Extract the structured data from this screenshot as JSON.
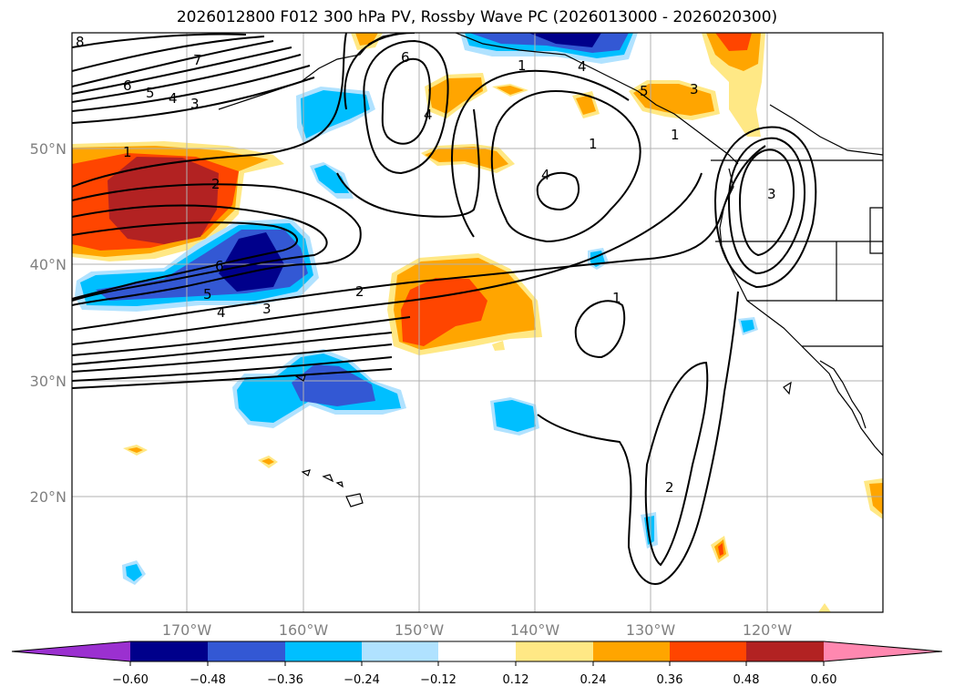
{
  "title": "2026012800 F012 300 hPa PV, Rossby Wave PC (2026013000 - 2026020300)",
  "map": {
    "lat_labels": [
      "50°N",
      "40°N",
      "30°N",
      "20°N"
    ],
    "lon_labels": [
      "170°W",
      "160°W",
      "150°W",
      "140°W",
      "130°W",
      "120°W"
    ]
  },
  "contour_labels": [
    "8",
    "7",
    "6",
    "5",
    "4",
    "3",
    "1",
    "2",
    "6",
    "5",
    "4",
    "3",
    "2",
    "6",
    "4",
    "1",
    "4",
    "4",
    "1",
    "1",
    "5",
    "3",
    "3",
    "1",
    "2"
  ],
  "colorbar": {
    "tick_labels": [
      "−0.60",
      "−0.48",
      "−0.36",
      "−0.24",
      "−0.12",
      "0.12",
      "0.24",
      "0.36",
      "0.48",
      "0.60"
    ],
    "colors": [
      "#9b30d0",
      "#00008b",
      "#3358d4",
      "#00bfff",
      "#b0e2ff",
      "#ffffff",
      "#ffe885",
      "#ffa500",
      "#ff4500",
      "#b22222",
      "#ff88b0"
    ]
  }
}
